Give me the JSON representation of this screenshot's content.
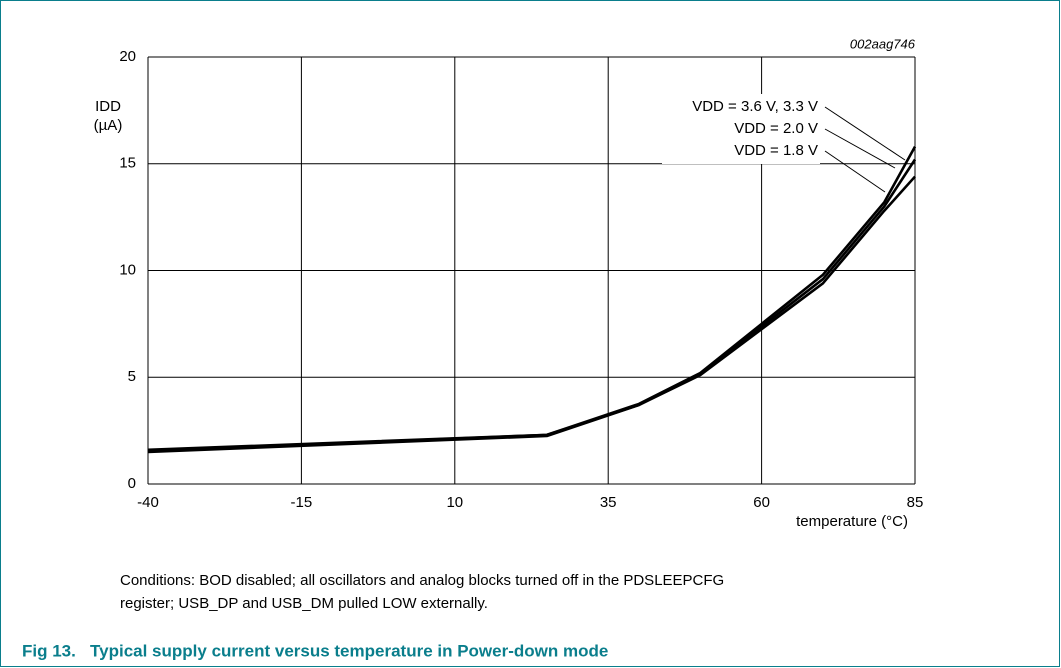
{
  "chart_data": {
    "type": "line",
    "annotation": "002aag746",
    "y_label": "IDD",
    "y_unit": "(µA)",
    "x_label": "temperature (°C)",
    "x": [
      -40,
      25,
      40,
      50,
      70,
      80,
      85
    ],
    "series": [
      {
        "name": "VDD = 3.6 V, 3.3 V",
        "color": "#000000",
        "values": [
          1.6,
          2.3,
          3.75,
          5.2,
          9.8,
          13.2,
          15.8
        ]
      },
      {
        "name": "VDD = 2.0 V",
        "color": "#000000",
        "values": [
          1.55,
          2.3,
          3.7,
          5.15,
          9.6,
          13.0,
          15.2
        ]
      },
      {
        "name": "VDD = 1.8 V",
        "color": "#000000",
        "values": [
          1.5,
          2.25,
          3.7,
          5.1,
          9.4,
          12.8,
          14.4
        ]
      }
    ],
    "xlim": [
      -40,
      85
    ],
    "xticks": [
      -40,
      -15,
      10,
      35,
      60,
      85
    ],
    "ylim": [
      0,
      20
    ],
    "yticks": [
      0,
      5,
      10,
      15,
      20
    ],
    "grid": true
  },
  "notes": [
    "Conditions: BOD disabled; all oscillators and analog blocks turned off in the PDSLEEPCFG",
    "register; USB_DP and USB_DM pulled LOW externally."
  ],
  "figure_caption": "Fig 13.   Typical supply current versus temperature in Power-down mode"
}
